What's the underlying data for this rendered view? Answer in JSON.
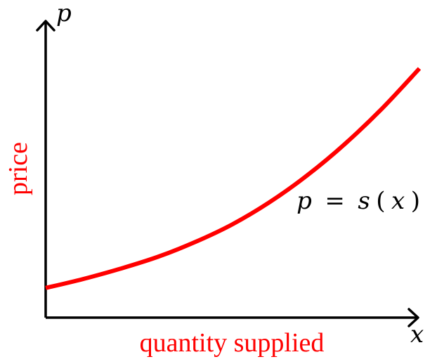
{
  "chart_data": {
    "type": "line",
    "title": "",
    "xlabel": "quantity supplied",
    "ylabel": "price",
    "x_axis_symbol": "x",
    "y_axis_symbol": "p",
    "curve_label": {
      "lhs": "p",
      "eq": "=",
      "fn": "s",
      "open": "(",
      "arg": "x",
      "close": ")"
    },
    "xlim": [
      0,
      1
    ],
    "ylim": [
      0,
      1
    ],
    "series": [
      {
        "color": "#ff0000",
        "x": [
          0,
          0.1,
          0.2,
          0.3,
          0.4,
          0.5,
          0.6,
          0.7,
          0.8,
          0.9,
          1.0
        ],
        "y": [
          0.1,
          0.13,
          0.165,
          0.205,
          0.255,
          0.315,
          0.39,
          0.48,
          0.585,
          0.705,
          0.84
        ]
      }
    ],
    "grid": false,
    "legend": false
  },
  "colors": {
    "accent": "#ff0000",
    "axis": "#000000"
  }
}
